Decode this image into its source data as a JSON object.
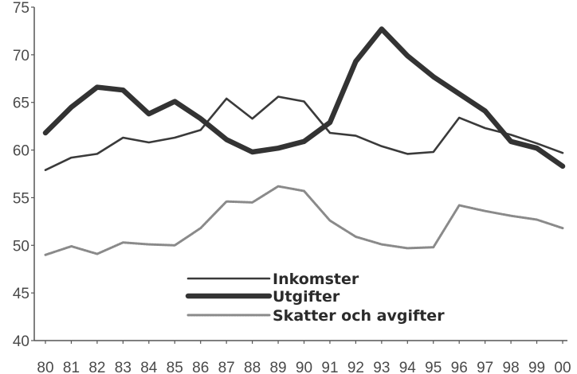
{
  "chart_data": {
    "type": "line",
    "title": "",
    "xlabel": "",
    "ylabel": "",
    "categories": [
      "80",
      "81",
      "82",
      "83",
      "84",
      "85",
      "86",
      "87",
      "88",
      "89",
      "90",
      "91",
      "92",
      "93",
      "94",
      "95",
      "96",
      "97",
      "98",
      "99",
      "00"
    ],
    "ylim": [
      40,
      75
    ],
    "yticks": [
      40,
      45,
      50,
      55,
      60,
      65,
      70,
      75
    ],
    "grid": false,
    "legend_position": "bottom-center",
    "series": [
      {
        "name": "Inkomster",
        "color": "#3a3a3a",
        "style": "medium",
        "values": [
          57.9,
          59.2,
          59.6,
          61.3,
          60.8,
          61.3,
          62.1,
          65.4,
          63.3,
          65.6,
          65.1,
          61.8,
          61.5,
          60.4,
          59.6,
          59.8,
          63.4,
          62.3,
          61.6,
          60.7,
          59.7
        ]
      },
      {
        "name": "Utgifter",
        "color": "#333333",
        "style": "thick",
        "values": [
          61.8,
          64.5,
          66.6,
          66.3,
          63.8,
          65.1,
          63.3,
          61.1,
          59.8,
          60.2,
          60.9,
          62.9,
          69.3,
          72.7,
          69.9,
          67.7,
          65.9,
          64.1,
          60.9,
          60.2,
          58.3
        ]
      },
      {
        "name": "Skatter och avgifter",
        "color": "#8a8a8a",
        "style": "dotted",
        "values": [
          49.0,
          49.9,
          49.1,
          50.3,
          50.1,
          50.0,
          51.8,
          54.6,
          54.5,
          56.2,
          55.7,
          52.6,
          50.9,
          50.1,
          49.7,
          49.8,
          54.2,
          53.6,
          53.1,
          52.7,
          51.8
        ]
      }
    ]
  }
}
